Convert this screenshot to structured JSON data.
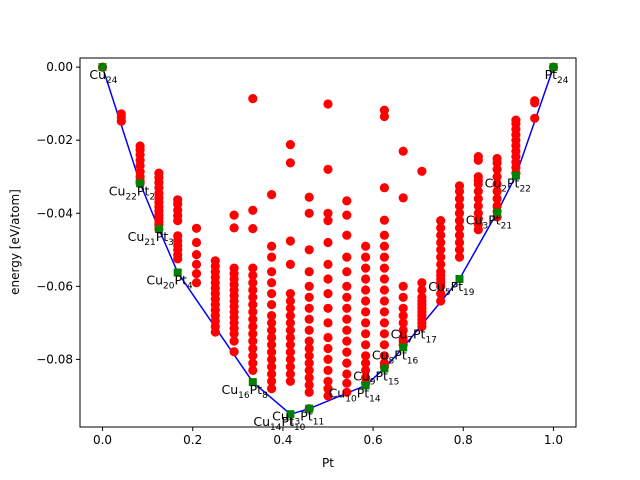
{
  "chart_data": {
    "type": "scatter",
    "xlabel": "Pt",
    "ylabel": "energy [eV/atom]",
    "xlim": [
      -0.05,
      1.05
    ],
    "ylim": [
      -0.0985,
      0.0025
    ],
    "xticks": [
      "0.0",
      "0.2",
      "0.4",
      "0.6",
      "0.8",
      "1.0"
    ],
    "yticks": [
      "0.00",
      "−0.02",
      "−0.04",
      "−0.06",
      "−0.08"
    ],
    "grid": false,
    "colors": {
      "points": "#ff0000",
      "hull": "#0000ff",
      "hull_points": "#008000"
    },
    "series": [
      {
        "role": "all structures",
        "marker": "circle",
        "x": [
          0.0,
          0.0417,
          0.0417,
          0.0417,
          0.0833,
          0.0833,
          0.0833,
          0.0833,
          0.0833,
          0.0833,
          0.0833,
          0.0833,
          0.0833,
          0.125,
          0.125,
          0.125,
          0.125,
          0.125,
          0.125,
          0.125,
          0.125,
          0.125,
          0.125,
          0.125,
          0.125,
          0.125,
          0.125,
          0.1667,
          0.1667,
          0.1667,
          0.1667,
          0.1667,
          0.1667,
          0.1667,
          0.1667,
          0.1667,
          0.1667,
          0.1667,
          0.2083,
          0.2083,
          0.2083,
          0.2083,
          0.2083,
          0.2083,
          0.25,
          0.25,
          0.25,
          0.25,
          0.25,
          0.25,
          0.25,
          0.25,
          0.25,
          0.25,
          0.25,
          0.25,
          0.25,
          0.25,
          0.2917,
          0.2917,
          0.2917,
          0.2917,
          0.2917,
          0.2917,
          0.2917,
          0.2917,
          0.2917,
          0.2917,
          0.2917,
          0.2917,
          0.2917,
          0.2917,
          0.2917,
          0.2917,
          0.2917,
          0.3333,
          0.3333,
          0.3333,
          0.3333,
          0.3333,
          0.3333,
          0.3333,
          0.3333,
          0.3333,
          0.3333,
          0.3333,
          0.3333,
          0.3333,
          0.3333,
          0.3333,
          0.3333,
          0.3333,
          0.3333,
          0.375,
          0.375,
          0.375,
          0.375,
          0.375,
          0.375,
          0.375,
          0.375,
          0.375,
          0.375,
          0.375,
          0.375,
          0.375,
          0.375,
          0.375,
          0.375,
          0.375,
          0.375,
          0.4167,
          0.4167,
          0.4167,
          0.4167,
          0.4167,
          0.4167,
          0.4167,
          0.4167,
          0.4167,
          0.4167,
          0.4167,
          0.4167,
          0.4167,
          0.4167,
          0.4167,
          0.4167,
          0.4167,
          0.4583,
          0.4583,
          0.4583,
          0.4583,
          0.4583,
          0.4583,
          0.4583,
          0.4583,
          0.4583,
          0.4583,
          0.4583,
          0.4583,
          0.4583,
          0.4583,
          0.4583,
          0.4583,
          0.4583,
          0.4583,
          0.5,
          0.5,
          0.5,
          0.5,
          0.5,
          0.5,
          0.5,
          0.5,
          0.5,
          0.5,
          0.5,
          0.5,
          0.5,
          0.5,
          0.5,
          0.5,
          0.5,
          0.5417,
          0.5417,
          0.5417,
          0.5417,
          0.5417,
          0.5417,
          0.5417,
          0.5417,
          0.5417,
          0.5417,
          0.5417,
          0.5417,
          0.5417,
          0.5417,
          0.5417,
          0.5417,
          0.5833,
          0.5833,
          0.5833,
          0.5833,
          0.5833,
          0.5833,
          0.5833,
          0.5833,
          0.5833,
          0.5833,
          0.5833,
          0.5833,
          0.5833,
          0.5833,
          0.5833,
          0.625,
          0.625,
          0.625,
          0.625,
          0.625,
          0.625,
          0.625,
          0.625,
          0.625,
          0.625,
          0.625,
          0.625,
          0.625,
          0.625,
          0.625,
          0.625,
          0.625,
          0.625,
          0.6667,
          0.6667,
          0.6667,
          0.6667,
          0.6667,
          0.6667,
          0.6667,
          0.6667,
          0.6667,
          0.6667,
          0.6667,
          0.7083,
          0.7083,
          0.7083,
          0.7083,
          0.7083,
          0.7083,
          0.7083,
          0.7083,
          0.7083,
          0.7083,
          0.7083,
          0.7083,
          0.75,
          0.75,
          0.75,
          0.75,
          0.75,
          0.75,
          0.75,
          0.75,
          0.75,
          0.75,
          0.75,
          0.75,
          0.75,
          0.75,
          0.7917,
          0.7917,
          0.7917,
          0.7917,
          0.7917,
          0.7917,
          0.7917,
          0.7917,
          0.7917,
          0.7917,
          0.7917,
          0.8333,
          0.8333,
          0.8333,
          0.8333,
          0.8333,
          0.8333,
          0.8333,
          0.8333,
          0.8333,
          0.8333,
          0.8333,
          0.8333,
          0.875,
          0.875,
          0.875,
          0.875,
          0.875,
          0.875,
          0.875,
          0.875,
          0.875,
          0.875,
          0.9167,
          0.9167,
          0.9167,
          0.9167,
          0.9167,
          0.9167,
          0.9167,
          0.9167,
          0.9167,
          0.9167,
          0.9167,
          0.9583,
          0.9583,
          0.9583,
          1.0
        ],
        "y": [
          0.0,
          -0.0128,
          -0.0137,
          -0.0148,
          -0.0216,
          -0.0226,
          -0.024,
          -0.0255,
          -0.027,
          -0.0286,
          -0.03,
          -0.0312,
          -0.0318,
          -0.029,
          -0.0302,
          -0.0316,
          -0.033,
          -0.0345,
          -0.0358,
          -0.037,
          -0.0382,
          -0.0394,
          -0.0405,
          -0.0414,
          -0.0424,
          -0.0433,
          -0.0443,
          -0.0363,
          -0.0375,
          -0.0392,
          -0.0406,
          -0.042,
          -0.0462,
          -0.0475,
          -0.0488,
          -0.05,
          -0.0514,
          -0.0525,
          -0.0441,
          -0.048,
          -0.0513,
          -0.054,
          -0.0565,
          -0.059,
          -0.053,
          -0.0545,
          -0.056,
          -0.0575,
          -0.059,
          -0.0605,
          -0.062,
          -0.0635,
          -0.065,
          -0.0665,
          -0.068,
          -0.0695,
          -0.071,
          -0.0725,
          -0.0405,
          -0.044,
          -0.055,
          -0.0565,
          -0.058,
          -0.0595,
          -0.061,
          -0.0625,
          -0.064,
          -0.0655,
          -0.067,
          -0.0685,
          -0.07,
          -0.0715,
          -0.073,
          -0.075,
          -0.0779,
          -0.0086,
          -0.0392,
          -0.0442,
          -0.055,
          -0.057,
          -0.059,
          -0.061,
          -0.063,
          -0.065,
          -0.067,
          -0.069,
          -0.071,
          -0.073,
          -0.075,
          -0.077,
          -0.079,
          -0.081,
          -0.083,
          -0.0349,
          -0.049,
          -0.052,
          -0.056,
          -0.059,
          -0.062,
          -0.065,
          -0.068,
          -0.07,
          -0.072,
          -0.074,
          -0.076,
          -0.078,
          -0.08,
          -0.082,
          -0.084,
          -0.086,
          -0.088,
          -0.0212,
          -0.0262,
          -0.0476,
          -0.054,
          -0.062,
          -0.064,
          -0.066,
          -0.068,
          -0.07,
          -0.072,
          -0.074,
          -0.076,
          -0.078,
          -0.08,
          -0.082,
          -0.084,
          -0.086,
          -0.0356,
          -0.04,
          -0.05,
          -0.056,
          -0.06,
          -0.063,
          -0.066,
          -0.069,
          -0.072,
          -0.075,
          -0.077,
          -0.079,
          -0.081,
          -0.083,
          -0.085,
          -0.087,
          -0.089,
          -0.0935,
          -0.0101,
          -0.028,
          -0.04,
          -0.042,
          -0.048,
          -0.054,
          -0.058,
          -0.062,
          -0.066,
          -0.07,
          -0.074,
          -0.077,
          -0.08,
          -0.083,
          -0.086,
          -0.088,
          -0.09,
          -0.0366,
          -0.0405,
          -0.046,
          -0.052,
          -0.056,
          -0.06,
          -0.063,
          -0.066,
          -0.069,
          -0.072,
          -0.075,
          -0.078,
          -0.081,
          -0.084,
          -0.0865,
          -0.089,
          -0.049,
          -0.052,
          -0.055,
          -0.058,
          -0.061,
          -0.064,
          -0.067,
          -0.07,
          -0.073,
          -0.076,
          -0.079,
          -0.081,
          -0.083,
          -0.085,
          -0.0865,
          -0.0118,
          -0.0135,
          -0.033,
          -0.0419,
          -0.046,
          -0.049,
          -0.052,
          -0.055,
          -0.058,
          -0.061,
          -0.064,
          -0.067,
          -0.07,
          -0.073,
          -0.076,
          -0.079,
          -0.081,
          -0.082,
          -0.023,
          -0.0358,
          -0.06,
          -0.063,
          -0.066,
          -0.068,
          -0.07,
          -0.072,
          -0.074,
          -0.075,
          -0.076,
          -0.0285,
          -0.059,
          -0.061,
          -0.063,
          -0.064,
          -0.065,
          -0.066,
          -0.067,
          -0.068,
          -0.069,
          -0.07,
          -0.071,
          -0.042,
          -0.044,
          -0.046,
          -0.048,
          -0.05,
          -0.052,
          -0.054,
          -0.056,
          -0.057,
          -0.058,
          -0.059,
          -0.06,
          -0.062,
          -0.064,
          -0.0325,
          -0.034,
          -0.036,
          -0.038,
          -0.04,
          -0.042,
          -0.044,
          -0.046,
          -0.048,
          -0.05,
          -0.052,
          -0.0245,
          -0.0255,
          -0.03,
          -0.031,
          -0.032,
          -0.034,
          -0.036,
          -0.038,
          -0.04,
          -0.0415,
          -0.043,
          -0.0445,
          -0.025,
          -0.0262,
          -0.028,
          -0.03,
          -0.032,
          -0.034,
          -0.036,
          -0.038,
          -0.0395,
          -0.041,
          -0.0145,
          -0.0155,
          -0.017,
          -0.0185,
          -0.02,
          -0.0215,
          -0.023,
          -0.0245,
          -0.026,
          -0.0275,
          -0.029,
          -0.0092,
          -0.0098,
          -0.014,
          0.0
        ]
      },
      {
        "role": "convex hull",
        "marker": "square",
        "line": true,
        "x": [
          0.0,
          0.0833,
          0.125,
          0.1667,
          0.3333,
          0.4167,
          0.4583,
          0.5833,
          0.625,
          0.6667,
          0.7917,
          0.875,
          0.9167,
          1.0
        ],
        "y": [
          0.0,
          -0.0318,
          -0.0443,
          -0.0562,
          -0.0862,
          -0.095,
          -0.0935,
          -0.0871,
          -0.0825,
          -0.0767,
          -0.058,
          -0.0398,
          -0.0297,
          0.0
        ]
      }
    ],
    "annotations": [
      {
        "x": 0.0,
        "y": 0.0,
        "base": "Cu",
        "sub": "24"
      },
      {
        "x": 0.0833,
        "y": -0.0318,
        "base": "Cu",
        "sub": "22",
        "base2": "Pt",
        "sub2": "2"
      },
      {
        "x": 0.125,
        "y": -0.0443,
        "base": "Cu",
        "sub": "21",
        "base2": "Pt",
        "sub2": "3"
      },
      {
        "x": 0.1667,
        "y": -0.0562,
        "base": "Cu",
        "sub": "20",
        "base2": "Pt",
        "sub2": "4"
      },
      {
        "x": 0.3333,
        "y": -0.0862,
        "base": "Cu",
        "sub": "16",
        "base2": "Pt",
        "sub2": "8"
      },
      {
        "x": 0.4167,
        "y": -0.095,
        "base": "Cu",
        "sub": "14",
        "base2": "Pt",
        "sub2": "10"
      },
      {
        "x": 0.4583,
        "y": -0.0935,
        "base": "Cu",
        "sub": "13",
        "base2": "Pt",
        "sub2": "11"
      },
      {
        "x": 0.5833,
        "y": -0.0871,
        "base": "Cu",
        "sub": "10",
        "base2": "Pt",
        "sub2": "14"
      },
      {
        "x": 0.625,
        "y": -0.0825,
        "base": "Cu",
        "sub": "9",
        "base2": "Pt",
        "sub2": "15"
      },
      {
        "x": 0.6667,
        "y": -0.0767,
        "base": "Cu",
        "sub": "8",
        "base2": "Pt",
        "sub2": "16"
      },
      {
        "x": 0.7083,
        "y": -0.071,
        "base": "Cu",
        "sub": "7",
        "base2": "Pt",
        "sub2": "17"
      },
      {
        "x": 0.7917,
        "y": -0.058,
        "base": "Cu",
        "sub": "5",
        "base2": "Pt",
        "sub2": "19"
      },
      {
        "x": 0.875,
        "y": -0.0398,
        "base": "Cu",
        "sub": "3",
        "base2": "Pt",
        "sub2": "21"
      },
      {
        "x": 0.9167,
        "y": -0.0297,
        "base": "Cu",
        "sub": "2",
        "base2": "Pt",
        "sub2": "22"
      },
      {
        "x": 1.0,
        "y": 0.0,
        "base": "Pt",
        "sub": "24"
      }
    ]
  }
}
